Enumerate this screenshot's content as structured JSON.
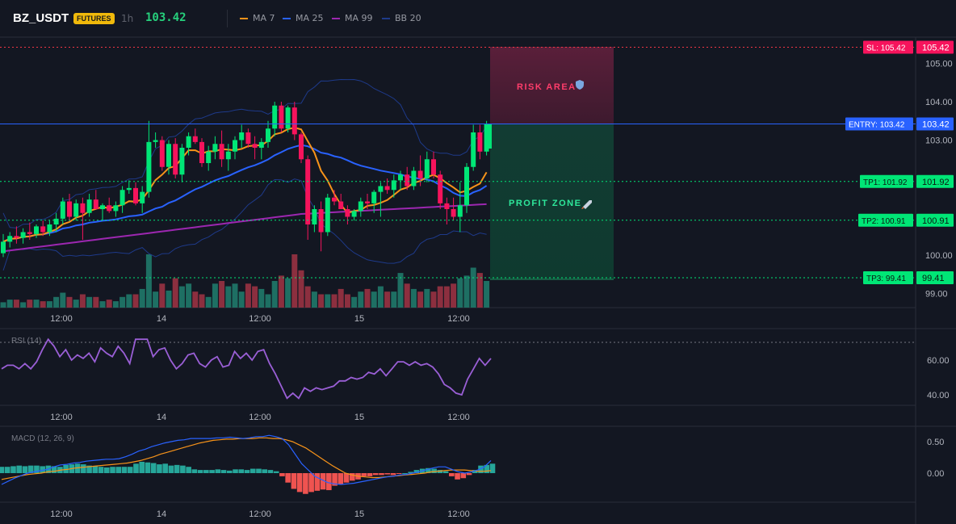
{
  "header": {
    "symbol": "BZ_USDT",
    "badge": "FUTURES",
    "interval": "1h",
    "last_price": "103.42",
    "legend": [
      {
        "label": "MA 7",
        "color": "#f7931a"
      },
      {
        "label": "MA 25",
        "color": "#2962ff"
      },
      {
        "label": "MA 99",
        "color": "#9c27b0"
      },
      {
        "label": "BB 20",
        "color": "#1e3a8a"
      }
    ]
  },
  "main_axis_labels": [
    "105.00",
    "104.00",
    "103.00",
    "100.00",
    "99.00"
  ],
  "levels": {
    "sl": {
      "tag": "SL: 105.42",
      "value": "105.42",
      "color": "#f23645"
    },
    "entry": {
      "tag": "ENTRY: 103.42",
      "value": "103.42",
      "color": "#2962ff"
    },
    "tp1": {
      "tag": "TP1: 101.92",
      "value": "101.92",
      "color": "#00e676"
    },
    "tp2": {
      "tag": "TP2: 100.91",
      "value": "100.91",
      "color": "#00e676"
    },
    "tp3": {
      "tag": "TP3: 99.41",
      "value": "99.41",
      "color": "#00e676"
    }
  },
  "zones": {
    "risk_label": "RISK AREA",
    "profit_label": "PROFIT ZONE"
  },
  "time_labels": [
    "12:00",
    "14",
    "12:00",
    "15",
    "12:00"
  ],
  "rsi": {
    "title": "RSI (14)",
    "axis_labels": [
      "60.00",
      "40.00"
    ],
    "values": [
      55,
      57,
      57,
      55,
      58,
      55,
      59,
      66,
      72,
      68,
      62,
      66,
      60,
      63,
      61,
      64,
      59,
      67,
      64,
      62,
      68,
      64,
      58,
      72,
      72,
      72,
      62,
      66,
      67,
      60,
      55,
      58,
      63,
      64,
      58,
      56,
      60,
      62,
      56,
      57,
      65,
      61,
      64,
      60,
      65,
      66,
      58,
      52,
      45,
      38,
      41,
      38,
      44,
      42,
      44,
      43,
      44,
      45,
      48,
      48,
      50,
      49,
      50,
      53,
      52,
      55,
      51,
      55,
      59,
      59,
      57,
      59,
      57,
      58,
      56,
      52,
      46,
      44,
      41,
      40,
      49,
      55,
      61,
      57,
      61
    ]
  },
  "macd": {
    "title": "MACD (12, 26, 9)",
    "axis_labels": [
      "0.50",
      "0.00"
    ],
    "hist": [
      0.1,
      0.1,
      0.11,
      0.12,
      0.11,
      0.12,
      0.12,
      0.11,
      0.12,
      0.11,
      0.1,
      0.13,
      0.14,
      0.15,
      0.14,
      0.12,
      0.11,
      0.1,
      0.09,
      0.1,
      0.1,
      0.1,
      0.1,
      0.15,
      0.18,
      0.17,
      0.16,
      0.14,
      0.15,
      0.12,
      0.13,
      0.12,
      0.1,
      0.06,
      0.05,
      0.05,
      0.05,
      0.06,
      0.05,
      0.04,
      0.06,
      0.06,
      0.05,
      0.07,
      0.07,
      0.06,
      0.05,
      0.03,
      -0.05,
      -0.15,
      -0.25,
      -0.3,
      -0.33,
      -0.3,
      -0.28,
      -0.26,
      -0.27,
      -0.2,
      -0.18,
      -0.15,
      -0.12,
      -0.1,
      -0.05,
      -0.05,
      -0.03,
      -0.03,
      -0.02,
      -0.03,
      -0.01,
      0.0,
      0.02,
      0.05,
      0.07,
      0.08,
      0.07,
      0.05,
      0.03,
      -0.05,
      -0.1,
      -0.08,
      -0.03,
      0.05,
      0.12,
      0.13,
      0.15
    ],
    "macd_line": [
      -0.18,
      -0.13,
      -0.08,
      -0.04,
      0.0,
      0.02,
      0.04,
      0.06,
      0.1,
      0.13,
      0.14,
      0.16,
      0.17,
      0.19,
      0.2,
      0.21,
      0.22,
      0.22,
      0.23,
      0.26,
      0.3,
      0.35,
      0.38,
      0.42,
      0.45,
      0.48,
      0.5,
      0.52,
      0.53,
      0.55,
      0.55,
      0.55,
      0.55,
      0.56,
      0.56,
      0.57,
      0.56,
      0.55,
      0.56,
      0.58,
      0.58,
      0.6,
      0.58,
      0.55,
      0.45,
      0.3,
      0.15,
      0.05,
      -0.05,
      -0.1,
      -0.15,
      -0.17,
      -0.18,
      -0.17,
      -0.16,
      -0.14,
      -0.12,
      -0.1,
      -0.08,
      -0.06,
      -0.05,
      -0.03,
      -0.02,
      0.0,
      0.02,
      0.05,
      0.08,
      0.1,
      0.1,
      0.06,
      0.02,
      0.0,
      0.02,
      0.05,
      0.1,
      0.2
    ],
    "signal_line": [
      -0.1,
      -0.08,
      -0.06,
      -0.04,
      -0.02,
      -0.01,
      0.0,
      0.02,
      0.03,
      0.05,
      0.06,
      0.08,
      0.09,
      0.1,
      0.11,
      0.12,
      0.13,
      0.14,
      0.15,
      0.16,
      0.18,
      0.2,
      0.23,
      0.26,
      0.3,
      0.33,
      0.36,
      0.39,
      0.42,
      0.45,
      0.48,
      0.5,
      0.52,
      0.53,
      0.54,
      0.54,
      0.55,
      0.55,
      0.55,
      0.56,
      0.56,
      0.55,
      0.55,
      0.53,
      0.5,
      0.45,
      0.4,
      0.33,
      0.26,
      0.19,
      0.12,
      0.06,
      0.0,
      -0.03,
      -0.05,
      -0.06,
      -0.07,
      -0.07,
      -0.06,
      -0.05,
      -0.04,
      -0.03,
      -0.02,
      -0.01,
      0.0,
      0.02,
      0.03,
      0.04,
      0.05,
      0.05,
      0.05,
      0.04,
      0.03,
      0.03,
      0.04
    ]
  },
  "candles": [
    [
      100.05,
      100.55,
      99.95,
      100.35
    ],
    [
      100.35,
      100.6,
      100.2,
      100.5
    ],
    [
      100.5,
      100.75,
      100.3,
      100.45
    ],
    [
      100.45,
      100.7,
      100.3,
      100.6
    ],
    [
      100.6,
      100.85,
      100.4,
      100.55
    ],
    [
      100.55,
      100.8,
      100.45,
      100.75
    ],
    [
      100.75,
      100.9,
      100.5,
      100.6
    ],
    [
      100.6,
      100.9,
      100.5,
      100.8
    ],
    [
      100.8,
      101.1,
      100.6,
      100.95
    ],
    [
      100.95,
      101.5,
      100.8,
      101.4
    ],
    [
      101.4,
      101.6,
      100.9,
      101.0
    ],
    [
      101.0,
      101.45,
      100.9,
      101.35
    ],
    [
      101.35,
      101.5,
      100.4,
      101.1
    ],
    [
      101.1,
      101.6,
      101.0,
      101.45
    ],
    [
      101.45,
      101.7,
      101.2,
      101.2
    ],
    [
      101.2,
      101.35,
      100.9,
      101.3
    ],
    [
      101.3,
      101.5,
      101.1,
      101.15
    ],
    [
      101.15,
      101.4,
      101.0,
      101.3
    ],
    [
      101.3,
      101.8,
      101.1,
      101.7
    ],
    [
      101.7,
      101.95,
      101.6,
      101.75
    ],
    [
      101.75,
      101.9,
      101.3,
      101.35
    ],
    [
      101.35,
      101.8,
      101.1,
      101.65
    ],
    [
      101.65,
      103.5,
      101.5,
      102.95
    ],
    [
      102.95,
      103.2,
      102.8,
      103.0
    ],
    [
      103.0,
      103.1,
      102.2,
      102.3
    ],
    [
      102.3,
      103.0,
      102.1,
      102.9
    ],
    [
      102.9,
      103.05,
      102.0,
      102.1
    ],
    [
      102.1,
      102.9,
      101.9,
      102.8
    ],
    [
      102.8,
      103.2,
      102.6,
      103.1
    ],
    [
      103.1,
      103.3,
      102.9,
      102.95
    ],
    [
      102.95,
      103.05,
      102.3,
      102.4
    ],
    [
      102.4,
      102.85,
      102.2,
      102.7
    ],
    [
      102.7,
      103.1,
      102.5,
      102.9
    ],
    [
      102.9,
      103.25,
      102.3,
      102.5
    ],
    [
      102.5,
      102.9,
      102.2,
      102.7
    ],
    [
      102.7,
      103.1,
      102.5,
      103.0
    ],
    [
      103.0,
      103.4,
      102.8,
      103.2
    ],
    [
      103.2,
      103.3,
      102.8,
      102.9
    ],
    [
      102.9,
      103.1,
      102.5,
      102.8
    ],
    [
      102.8,
      103.05,
      102.5,
      102.95
    ],
    [
      102.95,
      103.5,
      102.8,
      103.3
    ],
    [
      103.3,
      104.0,
      103.1,
      103.9
    ],
    [
      103.9,
      104.0,
      103.2,
      103.3
    ],
    [
      103.3,
      103.9,
      103.2,
      103.85
    ],
    [
      103.85,
      104.0,
      103.0,
      103.15
    ],
    [
      103.15,
      103.2,
      102.4,
      102.5
    ],
    [
      102.5,
      102.6,
      100.4,
      100.8
    ],
    [
      100.8,
      101.3,
      100.6,
      101.2
    ],
    [
      101.2,
      101.4,
      100.1,
      100.6
    ],
    [
      100.6,
      101.6,
      100.5,
      101.5
    ],
    [
      101.5,
      101.7,
      101.3,
      101.4
    ],
    [
      101.4,
      101.6,
      101.2,
      101.2
    ],
    [
      101.2,
      101.3,
      100.8,
      101.0
    ],
    [
      101.0,
      101.2,
      100.9,
      101.15
    ],
    [
      101.15,
      101.5,
      101.0,
      101.4
    ],
    [
      101.4,
      101.6,
      101.2,
      101.35
    ],
    [
      101.35,
      101.7,
      101.1,
      101.65
    ],
    [
      101.65,
      101.9,
      101.0,
      101.8
    ],
    [
      101.8,
      102.0,
      101.6,
      101.7
    ],
    [
      101.7,
      102.1,
      101.5,
      101.95
    ],
    [
      101.95,
      102.2,
      101.7,
      102.1
    ],
    [
      102.1,
      102.3,
      101.7,
      101.8
    ],
    [
      101.8,
      102.3,
      101.7,
      102.2
    ],
    [
      102.2,
      102.6,
      101.8,
      102.0
    ],
    [
      102.0,
      102.7,
      101.9,
      102.5
    ],
    [
      102.5,
      102.7,
      102.0,
      102.1
    ],
    [
      102.1,
      102.2,
      101.2,
      101.35
    ],
    [
      101.35,
      101.5,
      100.8,
      101.2
    ],
    [
      101.2,
      101.5,
      100.9,
      101.0
    ],
    [
      101.0,
      101.9,
      100.6,
      101.3
    ],
    [
      101.3,
      102.4,
      101.1,
      102.3
    ],
    [
      102.3,
      103.4,
      102.2,
      103.2
    ],
    [
      103.2,
      103.4,
      102.5,
      102.7
    ],
    [
      102.7,
      103.5,
      102.6,
      103.42
    ]
  ],
  "volumes": [
    0.1,
    0.15,
    0.15,
    0.1,
    0.15,
    0.15,
    0.12,
    0.12,
    0.2,
    0.28,
    0.2,
    0.15,
    0.25,
    0.2,
    0.2,
    0.12,
    0.15,
    0.12,
    0.2,
    0.25,
    0.25,
    0.35,
    1.0,
    0.3,
    0.45,
    0.32,
    0.55,
    0.4,
    0.45,
    0.3,
    0.25,
    0.2,
    0.45,
    0.5,
    0.4,
    0.45,
    0.3,
    0.45,
    0.4,
    0.35,
    0.25,
    0.5,
    0.6,
    0.55,
    1.0,
    0.7,
    0.4,
    0.3,
    0.25,
    0.25,
    0.25,
    0.35,
    0.25,
    0.2,
    0.3,
    0.35,
    0.3,
    0.4,
    0.3,
    0.3,
    0.65,
    0.45,
    0.35,
    0.3,
    0.35,
    0.3,
    0.4,
    0.4,
    0.45,
    0.55,
    0.6,
    0.75,
    0.65,
    0.5
  ]
}
